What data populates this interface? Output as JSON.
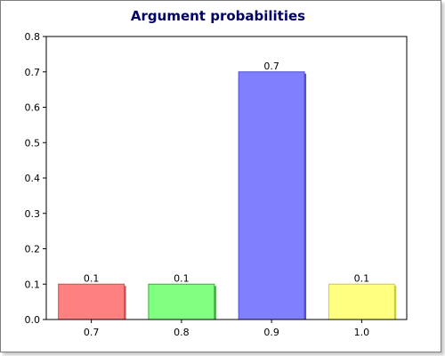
{
  "chart_data": {
    "type": "bar",
    "title": "Argument probabilities",
    "xlabel": "",
    "ylabel": "",
    "categories": [
      "0.7",
      "0.8",
      "0.9",
      "1.0"
    ],
    "values": [
      0.1,
      0.1,
      0.7,
      0.1
    ],
    "data_labels": [
      "0.1",
      "0.1",
      "0.7",
      "0.1"
    ],
    "ylim": [
      0,
      0.8
    ],
    "yticks": [
      0.0,
      0.1,
      0.2,
      0.3,
      0.4,
      0.5,
      0.6,
      0.7,
      0.8
    ],
    "ytick_labels": [
      "0.0",
      "0.1",
      "0.2",
      "0.3",
      "0.4",
      "0.5",
      "0.6",
      "0.7",
      "0.8"
    ],
    "grid": false,
    "legend": "none",
    "bar_colors": [
      "#ff8080",
      "#80ff80",
      "#8080ff",
      "#ffff80"
    ],
    "bar_edge_colors": [
      "#cc5050",
      "#40aa40",
      "#5050cc",
      "#cccc40"
    ],
    "title_color": "#000066"
  }
}
